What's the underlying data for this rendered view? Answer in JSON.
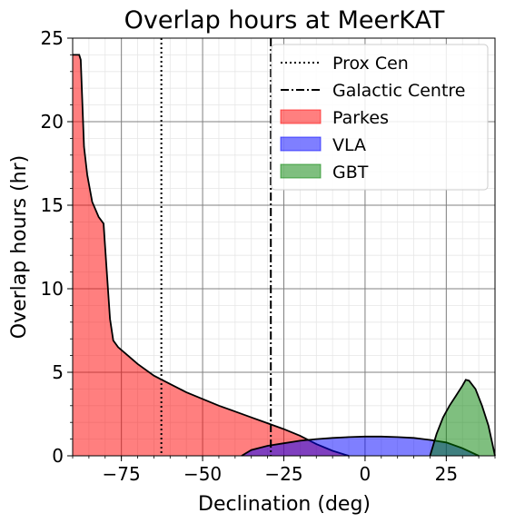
{
  "chart_data": {
    "type": "area",
    "title": "Overlap hours at MeerKAT",
    "xlabel": "Declination (deg)",
    "ylabel": "Overlap hours (hr)",
    "xlim": [
      -90,
      40
    ],
    "ylim": [
      0,
      25
    ],
    "xticks": [
      -75,
      -50,
      -25,
      0,
      25
    ],
    "xtick_labels": [
      "−75",
      "−50",
      "−25",
      "0",
      "25"
    ],
    "yticks": [
      0,
      5,
      10,
      15,
      20,
      25
    ],
    "ytick_labels": [
      "0",
      "5",
      "10",
      "15",
      "20",
      "25"
    ],
    "grid": true,
    "minor_grid": true,
    "legend_position": "top-right",
    "series": [
      {
        "name": "Parkes",
        "color": "#ff0000",
        "x": [
          -90,
          -88,
          -87.5,
          -86.5,
          -85.5,
          -84,
          -82,
          -80.5,
          -79.5,
          -78.5,
          -77.5,
          -76,
          -73,
          -70,
          -65,
          -60,
          -55,
          -50,
          -45,
          -40,
          -35,
          -30,
          -25,
          -20,
          -15,
          -10,
          -5
        ],
        "values": [
          24.0,
          24.0,
          23.7,
          18.5,
          16.8,
          15.2,
          14.3,
          13.9,
          11.0,
          8.2,
          6.9,
          6.5,
          6.0,
          5.5,
          4.8,
          4.3,
          3.8,
          3.4,
          3.0,
          2.65,
          2.3,
          1.95,
          1.6,
          1.2,
          0.7,
          0.3,
          0.0
        ]
      },
      {
        "name": "VLA",
        "color": "#0000ff",
        "x": [
          -38,
          -35,
          -30,
          -25,
          -20,
          -15,
          -10,
          -5,
          0,
          5,
          10,
          15,
          18,
          20,
          25,
          30,
          35
        ],
        "values": [
          0.0,
          0.35,
          0.6,
          0.75,
          0.9,
          1.0,
          1.07,
          1.12,
          1.15,
          1.15,
          1.12,
          1.07,
          1.0,
          0.95,
          0.8,
          0.45,
          0.0
        ]
      },
      {
        "name": "GBT",
        "color": "#008000",
        "x": [
          20,
          22,
          24,
          26,
          28,
          30,
          31,
          32,
          34,
          36,
          38,
          39,
          40
        ],
        "values": [
          0.0,
          1.3,
          2.3,
          3.0,
          3.6,
          4.2,
          4.55,
          4.5,
          4.0,
          3.0,
          1.8,
          0.9,
          0.0
        ]
      }
    ],
    "reference_lines": [
      {
        "name": "Prox Cen",
        "x": -62.7,
        "style": "dotted"
      },
      {
        "name": "Galactic Centre",
        "x": -29.0,
        "style": "dashdot"
      }
    ]
  }
}
